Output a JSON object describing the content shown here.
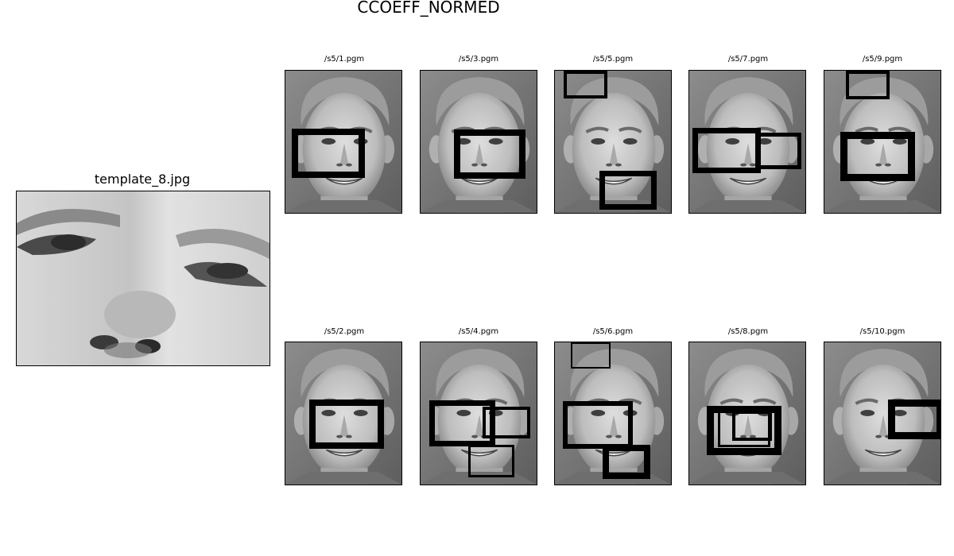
{
  "figure": {
    "title": "CCOEFF_NORMED"
  },
  "template": {
    "title": "template_8.jpg"
  },
  "panels": [
    {
      "title": "/s5/1.pgm"
    },
    {
      "title": "/s5/3.pgm"
    },
    {
      "title": "/s5/5.pgm"
    },
    {
      "title": "/s5/7.pgm"
    },
    {
      "title": "/s5/9.pgm"
    },
    {
      "title": "/s5/2.pgm"
    },
    {
      "title": "/s5/4.pgm"
    },
    {
      "title": "/s5/6.pgm"
    },
    {
      "title": "/s5/8.pgm"
    },
    {
      "title": "/s5/10.pgm"
    }
  ],
  "colors": {
    "detection_box": "#000000",
    "background": "#ffffff"
  }
}
